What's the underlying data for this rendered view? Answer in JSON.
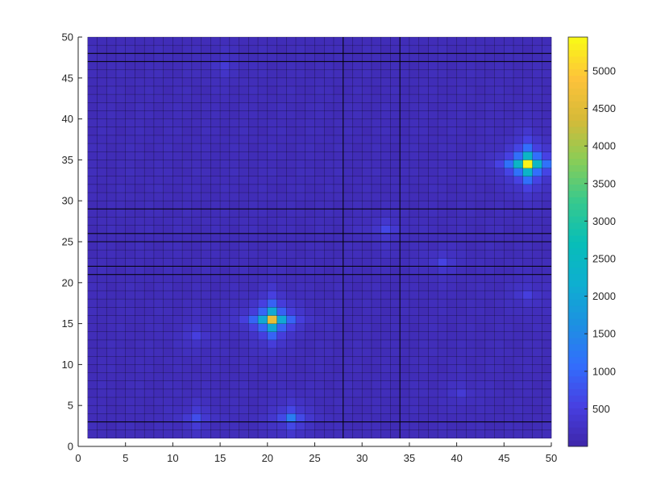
{
  "chart_data": {
    "type": "heatmap",
    "title": "",
    "xlabel": "",
    "ylabel": "",
    "xlim": [
      0,
      50
    ],
    "ylim": [
      0,
      50
    ],
    "x_ticks": [
      "0",
      "5",
      "10",
      "15",
      "20",
      "25",
      "30",
      "35",
      "40",
      "45",
      "50"
    ],
    "y_ticks": [
      "0",
      "5",
      "10",
      "15",
      "20",
      "25",
      "30",
      "35",
      "40",
      "45",
      "50"
    ],
    "grid_cells": {
      "x_range": [
        1,
        50
      ],
      "y_range": [
        1,
        50
      ]
    },
    "colormap": "parula",
    "colorbar": {
      "min": 0,
      "max": 5450,
      "ticks": [
        "500",
        "1000",
        "1500",
        "2000",
        "2500",
        "3000",
        "3500",
        "4000",
        "4500",
        "5000"
      ]
    },
    "background_value": 150,
    "hotspots": [
      {
        "x": 47.5,
        "y": 34.5,
        "value": 5400
      },
      {
        "x": 20.5,
        "y": 15.5,
        "value": 4600
      },
      {
        "x": 22.5,
        "y": 3.5,
        "value": 1300
      },
      {
        "x": 12.5,
        "y": 3.5,
        "value": 700
      },
      {
        "x": 32.5,
        "y": 26.5,
        "value": 600
      },
      {
        "x": 38.5,
        "y": 22.5,
        "value": 550
      },
      {
        "x": 47.5,
        "y": 18.5,
        "value": 500
      },
      {
        "x": 12.5,
        "y": 13.5,
        "value": 500
      },
      {
        "x": 15.5,
        "y": 46.5,
        "value": 400
      },
      {
        "x": 40.5,
        "y": 6.5,
        "value": 400
      }
    ],
    "boundary_lines_x": [
      28,
      34
    ],
    "boundary_lines_y": [
      3,
      21,
      22,
      25,
      26,
      29,
      47,
      48
    ]
  },
  "colors": {
    "gridline": "#000000",
    "axis": "#262626"
  }
}
